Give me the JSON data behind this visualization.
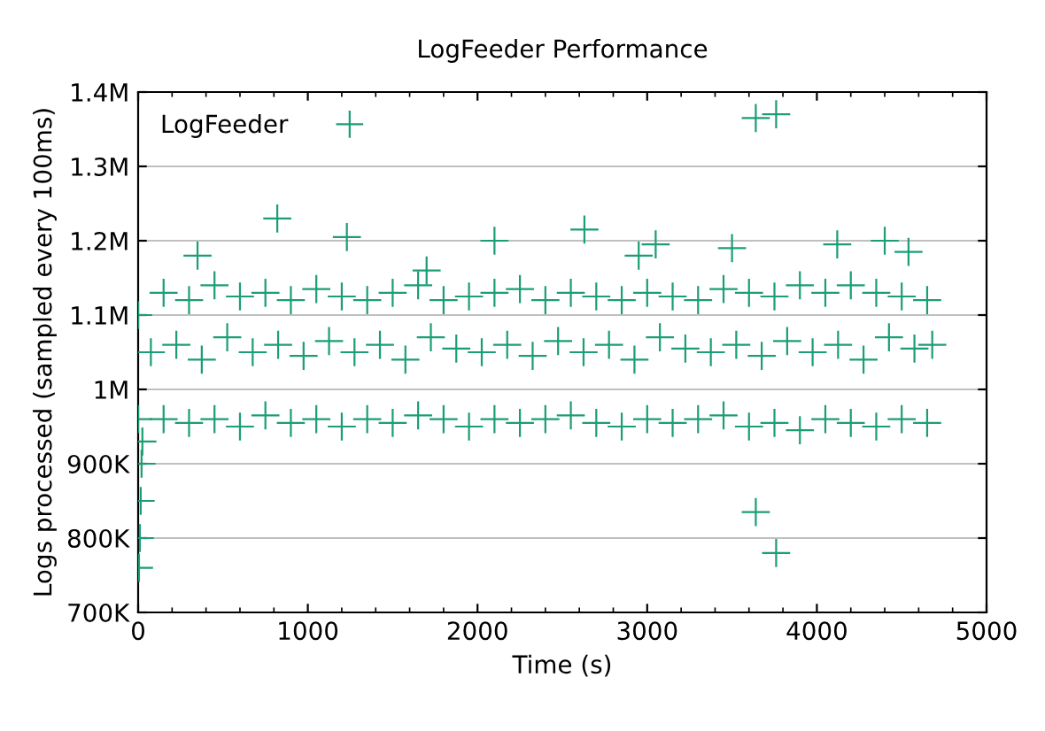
{
  "chart_data": {
    "type": "scatter",
    "title": "LogFeeder Performance",
    "xlabel": "Time (s)",
    "ylabel": "Logs processed (sampled every 100ms)",
    "series": [
      {
        "name": "LogFeeder",
        "color": "#1b9e77",
        "x": [
          0,
          150,
          300,
          450,
          600,
          750,
          900,
          1050,
          1200,
          1350,
          1500,
          1650,
          1800,
          1950,
          2100,
          2250,
          2400,
          2550,
          2700,
          2850,
          3000,
          3150,
          3300,
          3450,
          3600,
          3750,
          3900,
          4050,
          4200,
          4350,
          4500,
          4650,
          0,
          150,
          300,
          450,
          600,
          750,
          900,
          1050,
          1200,
          1350,
          1500,
          1650,
          1800,
          1950,
          2100,
          2250,
          2400,
          2550,
          2700,
          2850,
          3000,
          3150,
          3300,
          3450,
          3600,
          3750,
          3900,
          4050,
          4200,
          4350,
          4500,
          4650,
          75,
          225,
          375,
          525,
          675,
          825,
          975,
          1125,
          1275,
          1425,
          1575,
          1725,
          1875,
          2025,
          2175,
          2325,
          2475,
          2625,
          2775,
          2925,
          3075,
          3225,
          3375,
          3525,
          3675,
          3825,
          3975,
          4125,
          4275,
          4425,
          4575,
          4680,
          5,
          10,
          15,
          20,
          25,
          3640,
          3760,
          820,
          1230,
          2630,
          3640,
          3760,
          350,
          2100,
          3050,
          4120,
          4400,
          1700,
          2950,
          3500,
          4540
        ],
        "values": [
          1100000,
          1130000,
          1120000,
          1140000,
          1125000,
          1130000,
          1120000,
          1135000,
          1125000,
          1120000,
          1130000,
          1140000,
          1120000,
          1125000,
          1130000,
          1135000,
          1120000,
          1130000,
          1125000,
          1120000,
          1130000,
          1125000,
          1120000,
          1135000,
          1130000,
          1125000,
          1140000,
          1130000,
          1140000,
          1130000,
          1125000,
          1120000,
          960000,
          960000,
          955000,
          960000,
          950000,
          965000,
          955000,
          960000,
          950000,
          960000,
          955000,
          965000,
          960000,
          950000,
          960000,
          955000,
          960000,
          965000,
          955000,
          950000,
          960000,
          955000,
          960000,
          965000,
          950000,
          955000,
          945000,
          960000,
          955000,
          950000,
          960000,
          955000,
          1050000,
          1060000,
          1040000,
          1070000,
          1050000,
          1060000,
          1045000,
          1065000,
          1050000,
          1060000,
          1040000,
          1070000,
          1055000,
          1050000,
          1060000,
          1045000,
          1065000,
          1050000,
          1060000,
          1040000,
          1070000,
          1055000,
          1050000,
          1060000,
          1045000,
          1065000,
          1050000,
          1060000,
          1040000,
          1070000,
          1055000,
          1060000,
          760000,
          800000,
          850000,
          900000,
          930000,
          1365000,
          1370000,
          1230000,
          1205000,
          1215000,
          835000,
          780000,
          1180000,
          1200000,
          1195000,
          1195000,
          1200000,
          1160000,
          1180000,
          1190000,
          1185000
        ]
      }
    ],
    "xlim": [
      0,
      5000
    ],
    "xticks": [
      0,
      1000,
      2000,
      3000,
      4000,
      5000
    ],
    "ylim": [
      700000,
      1400000
    ],
    "yticks": [
      {
        "value": 700000,
        "label": "700K"
      },
      {
        "value": 800000,
        "label": "800K"
      },
      {
        "value": 900000,
        "label": "900K"
      },
      {
        "value": 1000000,
        "label": "1M"
      },
      {
        "value": 1100000,
        "label": "1.1M"
      },
      {
        "value": 1200000,
        "label": "1.2M"
      },
      {
        "value": 1300000,
        "label": "1.3M"
      },
      {
        "value": 1400000,
        "label": "1.4M"
      }
    ],
    "grid": "y",
    "legend": "top left",
    "marker": "cross"
  }
}
